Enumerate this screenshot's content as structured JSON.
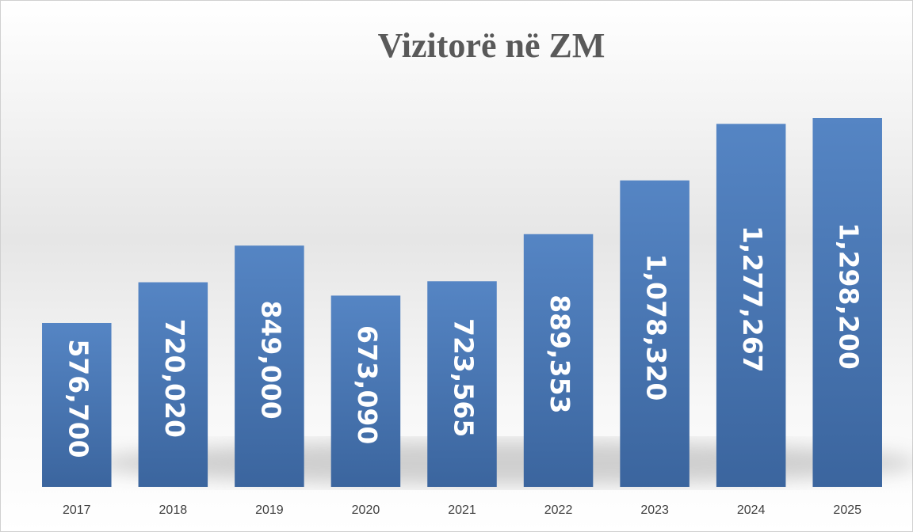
{
  "chart_data": {
    "type": "bar",
    "title": "Vizitorë në ZM",
    "categories": [
      "2017",
      "2018",
      "2019",
      "2020",
      "2021",
      "2022",
      "2023",
      "2024",
      "2025"
    ],
    "values": [
      576700,
      720020,
      849000,
      673090,
      723565,
      889353,
      1078320,
      1277267,
      1298200
    ],
    "value_labels": [
      "576,700",
      "720,020",
      "849,000",
      "673,090",
      "723,565",
      "889,353",
      "1,078,320",
      "1,277,267",
      "1,298,200"
    ],
    "color": "#4a7bb8"
  }
}
